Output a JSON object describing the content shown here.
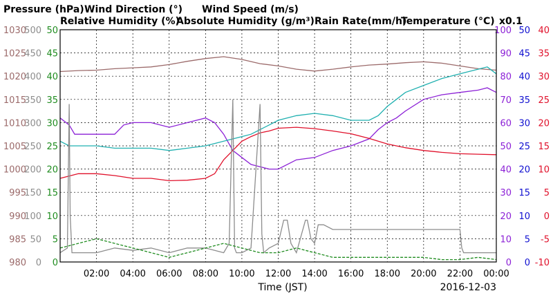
{
  "chart_data": {
    "type": "line",
    "date": "2016-12-03",
    "xlabel": "Time (JST)",
    "x_ticks": [
      "02:00",
      "04:00",
      "06:00",
      "08:00",
      "10:00",
      "12:00",
      "14:00",
      "16:00",
      "18:00",
      "20:00",
      "22:00",
      "00:00"
    ],
    "xlim": [
      0,
      24
    ],
    "grid": true,
    "legend": [
      {
        "label": "Pressure (hPa)",
        "color": "#9b6a6a"
      },
      {
        "label": "Wind Direction (°)",
        "color": "#8c8c8c"
      },
      {
        "label": "Wind Speed (m/s)",
        "color": "#1f8c1f"
      },
      {
        "label": "Relative Humidity (%)",
        "color": "#8b1fd6"
      },
      {
        "label": "Absolute Humidity (g/m³)",
        "color": "#1fb0b0"
      },
      {
        "label": "Rain Rate(mm/h)",
        "color": "#1010d0"
      },
      {
        "label": "Temperature (°C)",
        "color": "#e0102a"
      }
    ],
    "axes": {
      "pressure": {
        "color": "#9b6a6a",
        "ticks": [
          "1030",
          "1025",
          "1020",
          "1015",
          "1010",
          "1005",
          "1000",
          "995",
          "990",
          "985",
          "980"
        ],
        "ylim": [
          980,
          1030
        ]
      },
      "wind_dir": {
        "color": "#8c8c8c",
        "ticks": [
          "500",
          "450",
          "400",
          "350",
          "300",
          "250",
          "200",
          "150",
          "100",
          "50",
          "0"
        ],
        "ylim": [
          0,
          500
        ]
      },
      "wind_speed": {
        "color": "#1f8c1f",
        "ticks": [
          "50",
          "45",
          "40",
          "35",
          "30",
          "25",
          "20",
          "15",
          "10",
          "5",
          "0"
        ],
        "ylim": [
          0,
          50
        ]
      },
      "humidity": {
        "color": "#8b1fd6",
        "ticks": [
          "100",
          "90",
          "80",
          "70",
          "60",
          "50",
          "40",
          "30",
          "20",
          "10",
          "0"
        ],
        "ylim": [
          0,
          100
        ]
      },
      "rain": {
        "color": "#1010d0",
        "ticks": [
          "50",
          "45",
          "40",
          "35",
          "30",
          "25",
          "20",
          "15",
          "10",
          "5",
          "0"
        ],
        "ylim": [
          0,
          50
        ]
      },
      "temperature": {
        "color": "#e0102a",
        "ticks": [
          "40",
          "35",
          "30",
          "25",
          "20",
          "15",
          "10",
          "5",
          "0",
          "-5",
          "-10"
        ],
        "ylim": [
          -10,
          40
        ]
      }
    },
    "abs_humidity_scale": "x0.1",
    "series": [
      {
        "name": "Pressure (hPa)",
        "axis": "pressure",
        "color": "#9b6a6a",
        "x": [
          0,
          1,
          2,
          3,
          4,
          5,
          6,
          7,
          8,
          9,
          10,
          11,
          12,
          13,
          14,
          15,
          16,
          17,
          18,
          19,
          20,
          21,
          22,
          23,
          24
        ],
        "y": [
          1021,
          1021.2,
          1021.3,
          1021.6,
          1021.8,
          1022,
          1022.5,
          1023.2,
          1023.8,
          1024.2,
          1023.6,
          1022.7,
          1022.2,
          1021.5,
          1021.1,
          1021.5,
          1022,
          1022.4,
          1022.6,
          1022.9,
          1023.1,
          1022.8,
          1022.2,
          1021.6,
          1021.3
        ]
      },
      {
        "name": "Relative Humidity (%)",
        "axis": "humidity",
        "color": "#8b1fd6",
        "x": [
          0,
          0.5,
          0.8,
          1,
          2,
          3,
          3.5,
          4,
          5,
          6,
          7,
          8,
          8.5,
          9,
          9.5,
          10,
          10.5,
          11,
          11.5,
          12,
          12.5,
          13,
          14,
          15,
          16,
          17,
          17.5,
          18,
          18.5,
          19,
          20,
          21,
          22,
          23,
          23.5,
          24
        ],
        "y": [
          62,
          59,
          55,
          55,
          55,
          55,
          59,
          60,
          60,
          58,
          60,
          62,
          60,
          55,
          48,
          45,
          42,
          41,
          40,
          40,
          42,
          44,
          45,
          48,
          50,
          53,
          57,
          60,
          62,
          65,
          70,
          72,
          73,
          74,
          75,
          73
        ]
      },
      {
        "name": "Absolute Humidity (g/m³)",
        "axis": "humidity",
        "color": "#1fb0b0",
        "x": [
          0,
          0.5,
          1,
          2,
          3,
          4,
          5,
          6,
          7,
          8,
          9,
          10,
          10.5,
          11,
          11.5,
          12,
          13,
          14,
          15,
          16,
          17,
          17.5,
          18,
          18.5,
          19,
          20,
          21,
          22,
          23,
          23.5,
          24
        ],
        "y": [
          52,
          50,
          50,
          50,
          49,
          49,
          49,
          48,
          49,
          50,
          52,
          54,
          55,
          57,
          59,
          61,
          63,
          64,
          63,
          61,
          61,
          63,
          67,
          70,
          73,
          76,
          79,
          81,
          83,
          84,
          81
        ]
      },
      {
        "name": "Temperature (°C)",
        "axis": "temperature",
        "color": "#e0102a",
        "x": [
          0,
          1,
          2,
          3,
          4,
          5,
          6,
          7,
          8,
          8.5,
          9,
          9.5,
          10,
          10.5,
          11,
          11.5,
          12,
          13,
          14,
          15,
          16,
          17,
          18,
          19,
          20,
          21,
          22,
          23,
          24
        ],
        "y": [
          8,
          9,
          9,
          8.6,
          8,
          8,
          7.5,
          7.6,
          8,
          9,
          12,
          14,
          16,
          17,
          17.8,
          18.2,
          18.8,
          19,
          18.7,
          18.2,
          17.6,
          16.6,
          15.4,
          14.6,
          14,
          13.6,
          13.3,
          13.2,
          13.1
        ]
      },
      {
        "name": "Wind Direction (°)",
        "axis": "wind_dir",
        "color": "#8c8c8c",
        "x": [
          0,
          0.4,
          0.5,
          0.55,
          0.65,
          1,
          2,
          3,
          4,
          5,
          6,
          7,
          8,
          9,
          9.3,
          9.5,
          9.6,
          9.7,
          10,
          10.5,
          11,
          11.1,
          11.2,
          11.5,
          12,
          12.3,
          12.5,
          12.7,
          13,
          13.5,
          13.6,
          13.8,
          14,
          14.2,
          14.5,
          15,
          16,
          17,
          18,
          19,
          20,
          21,
          22,
          22.1,
          22.2,
          23,
          24
        ],
        "y": [
          20,
          30,
          340,
          100,
          20,
          20,
          20,
          30,
          25,
          30,
          20,
          30,
          30,
          20,
          40,
          350,
          30,
          20,
          20,
          30,
          340,
          60,
          20,
          30,
          40,
          90,
          90,
          40,
          20,
          90,
          90,
          50,
          40,
          80,
          80,
          70,
          70,
          70,
          70,
          70,
          70,
          70,
          70,
          30,
          20,
          20,
          20
        ]
      },
      {
        "name": "Wind Speed (m/s)",
        "axis": "wind_speed",
        "color": "#1f8c1f",
        "x": [
          0,
          1,
          2,
          3,
          4,
          5,
          6,
          7,
          8,
          9,
          10,
          11,
          12,
          13,
          14,
          15,
          16,
          17,
          18,
          19,
          20,
          21,
          22,
          23,
          24
        ],
        "y": [
          3,
          4,
          5,
          4,
          3,
          2,
          1,
          2,
          3,
          4,
          3,
          2,
          2,
          3,
          2,
          1,
          1,
          1,
          1,
          1,
          1,
          0.5,
          0.5,
          1,
          0.5
        ]
      }
    ]
  }
}
